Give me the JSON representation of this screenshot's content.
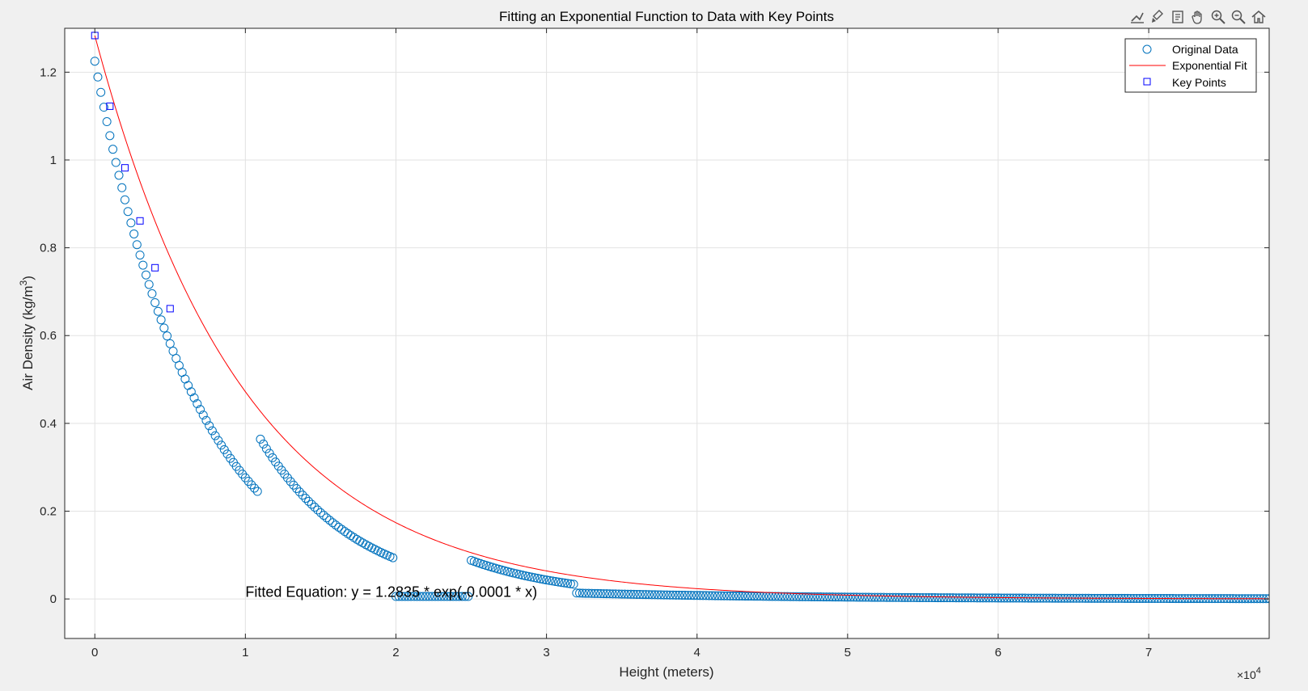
{
  "toolbar": {
    "icons": [
      "data-tips-icon",
      "brush-icon",
      "restore-view-icon",
      "pan-icon",
      "zoom-in-icon",
      "zoom-out-icon",
      "home-icon"
    ]
  },
  "colors": {
    "original_data": "#0072BD",
    "fit": "#FF0000",
    "key_points": "#0000FF",
    "grid": "#e2e2e2",
    "axes_bg": "#ffffff",
    "figure_bg": "#f0f0f0"
  },
  "chart_data": {
    "type": "scatter",
    "title": "Fitting an Exponential Function to Data with Key Points",
    "xlabel": "Height (meters)",
    "ylabel": "Air Density (kg/m",
    "ylabel_superscript": "3",
    "ylabel_suffix": ")",
    "x_exponent_base": "×10",
    "x_exponent_power": "4",
    "xlim": [
      -2000,
      78000
    ],
    "ylim": [
      -0.09,
      1.3
    ],
    "xticks": [
      0,
      10000,
      20000,
      30000,
      40000,
      50000,
      60000,
      70000
    ],
    "xtick_labels": [
      "0",
      "1",
      "2",
      "3",
      "4",
      "5",
      "6",
      "7"
    ],
    "yticks": [
      0,
      0.2,
      0.4,
      0.6,
      0.8,
      1.0,
      1.2
    ],
    "ytick_labels": [
      "0",
      "0.2",
      "0.4",
      "0.6",
      "0.8",
      "1",
      "1.2"
    ],
    "grid": true,
    "legend_position": "top-right",
    "legend": [
      "Original Data",
      "Exponential Fit",
      "Key Points"
    ],
    "annotation": {
      "text": "Fitted Equation: y = 1.2835 * exp(-0.0001 * x)",
      "x": 10000,
      "y": 0.005
    },
    "fit": {
      "a": 1.2835,
      "b": -0.0001
    },
    "original_data_segments": [
      {
        "x_start": 0,
        "x_end": 11000,
        "x_step": 200,
        "y_at_start": 1.225,
        "decay": 0.000149
      },
      {
        "x_start": 11000,
        "x_end": 20000,
        "x_step": 200,
        "y_at_start": 0.364,
        "decay": 0.000154
      },
      {
        "x_start": 20000,
        "x_end": 25000,
        "x_step": 200,
        "y_at_start": 0.0057,
        "decay": 0.0
      },
      {
        "x_start": 25000,
        "x_end": 32000,
        "x_step": 200,
        "y_at_start": 0.088,
        "decay": 0.000142
      },
      {
        "x_start": 32000,
        "x_end": 78000,
        "x_step": 200,
        "y_at_start": 0.0135,
        "decay": 6.5e-05
      }
    ],
    "key_points": {
      "x": [
        0,
        1000,
        2000,
        3000,
        4000,
        5000
      ],
      "y": [
        1.2835,
        1.1225,
        0.9821,
        0.8613,
        0.7545,
        0.6613
      ]
    }
  }
}
